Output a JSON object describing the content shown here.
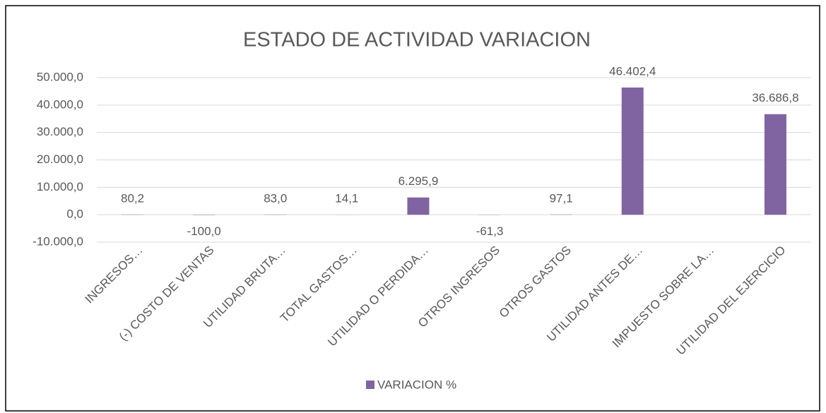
{
  "chart_data": {
    "type": "bar",
    "title": "ESTADO DE ACTIVIDAD VARIACION",
    "categories": [
      "INGRESOS…",
      "(-) COSTO DE VENTAS",
      "UTILIDAD BRUTA…",
      "TOTAL GASTOS…",
      "UTILIDAD O PERDIDA…",
      "OTROS INGRESOS",
      "OTROS GASTOS",
      "UTILIDAD ANTES DE…",
      "IMPUESTO SOBRE LA…",
      "UTILIDAD DEL EJERCICIO"
    ],
    "series": [
      {
        "name": "VARIACION  %",
        "color": "#8064a2",
        "values": [
          80.2,
          -100.0,
          83.0,
          14.1,
          6295.9,
          -61.3,
          97.1,
          46402.4,
          null,
          36686.8
        ],
        "value_labels": [
          "80,2",
          "-100,0",
          "83,0",
          "14,1",
          "6.295,9",
          "-61,3",
          "97,1",
          "46.402,4",
          null,
          "36.686,8"
        ]
      }
    ],
    "ylim": [
      -10000,
      50000
    ],
    "yticks": [
      {
        "value": -10000,
        "label": "-10.000,0"
      },
      {
        "value": 0,
        "label": "0,0"
      },
      {
        "value": 10000,
        "label": "10.000,0"
      },
      {
        "value": 20000,
        "label": "20.000,0"
      },
      {
        "value": 30000,
        "label": "30.000,0"
      },
      {
        "value": 40000,
        "label": "40.000,0"
      },
      {
        "value": 50000,
        "label": "50.000,0"
      }
    ],
    "grid": true,
    "legend": "bottom"
  }
}
